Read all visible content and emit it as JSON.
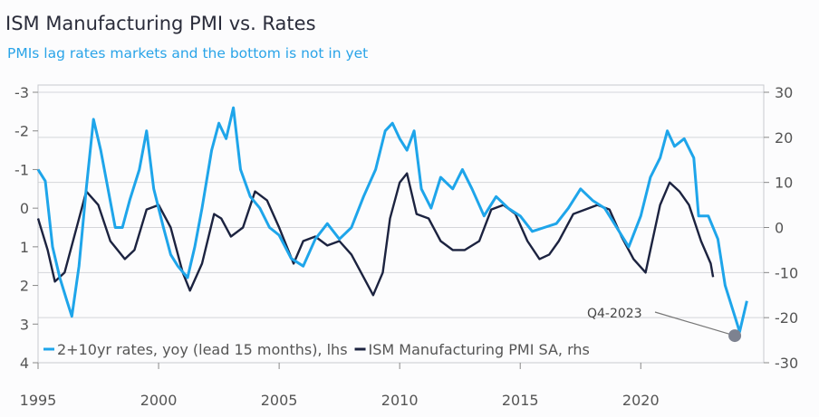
{
  "chart_data": {
    "type": "line",
    "title": "ISM Manufacturing PMI vs. Rates",
    "subtitle": "PMIs lag rates markets and the bottom is not in yet",
    "x_ticks": [
      1995,
      2000,
      2005,
      2010,
      2015,
      2020
    ],
    "xlim": [
      1995,
      2025.1
    ],
    "left_axis": {
      "ticks": [
        -3,
        -2,
        -1,
        0,
        1,
        2,
        3,
        4
      ],
      "ylim": [
        -3,
        4
      ],
      "inverted": true
    },
    "right_axis": {
      "ticks": [
        30,
        20,
        10,
        0,
        -10,
        -20,
        -30
      ],
      "ylim": [
        -30,
        30
      ]
    },
    "grid": true,
    "legend_placement": "bottom-left",
    "annotation": {
      "text": "Q4-2023",
      "x": 2023.9,
      "y": 3.3
    },
    "series": [
      {
        "name": "2+10yr rates, yoy (lead 15 months), lhs",
        "axis": "left",
        "color": "#1ea5ea",
        "x": [
          1995.0,
          1995.3,
          1995.6,
          1995.9,
          1996.2,
          1996.4,
          1996.7,
          1997.0,
          1997.3,
          1997.6,
          1997.9,
          1998.2,
          1998.5,
          1998.8,
          1999.2,
          1999.5,
          1999.8,
          2000.2,
          2000.5,
          2000.8,
          2001.2,
          2001.5,
          2001.8,
          2002.2,
          2002.5,
          2002.8,
          2003.1,
          2003.4,
          2003.8,
          2004.2,
          2004.6,
          2005.0,
          2005.5,
          2006.0,
          2006.5,
          2007.0,
          2007.5,
          2008.0,
          2008.5,
          2009.0,
          2009.4,
          2009.7,
          2010.0,
          2010.3,
          2010.6,
          2010.9,
          2011.3,
          2011.7,
          2012.2,
          2012.6,
          2013.0,
          2013.5,
          2014.0,
          2014.5,
          2015.0,
          2015.5,
          2016.0,
          2016.5,
          2017.0,
          2017.5,
          2018.0,
          2018.5,
          2019.0,
          2019.5,
          2020.0,
          2020.4,
          2020.8,
          2021.1,
          2021.4,
          2021.8,
          2022.2,
          2022.4,
          2022.8,
          2023.2,
          2023.5,
          2023.9,
          2024.1,
          2024.4
        ],
        "values": [
          -1.0,
          -0.7,
          1.0,
          1.8,
          2.4,
          2.8,
          1.5,
          -0.5,
          -2.3,
          -1.5,
          -0.5,
          0.5,
          0.5,
          -0.2,
          -1.0,
          -2.0,
          -0.5,
          0.5,
          1.2,
          1.5,
          1.8,
          1.0,
          0.0,
          -1.5,
          -2.2,
          -1.8,
          -2.6,
          -1.0,
          -0.3,
          0.0,
          0.5,
          0.7,
          1.3,
          1.5,
          0.8,
          0.4,
          0.8,
          0.5,
          -0.3,
          -1.0,
          -2.0,
          -2.2,
          -1.8,
          -1.5,
          -2.0,
          -0.5,
          0.0,
          -0.8,
          -0.5,
          -1.0,
          -0.5,
          0.2,
          -0.3,
          0.0,
          0.2,
          0.6,
          0.5,
          0.4,
          0.0,
          -0.5,
          -0.2,
          0.0,
          0.5,
          1.0,
          0.2,
          -0.8,
          -1.3,
          -2.0,
          -1.6,
          -1.8,
          -1.3,
          0.2,
          0.2,
          0.8,
          2.0,
          2.8,
          3.2,
          2.4
        ]
      },
      {
        "name": "ISM Manufacturing PMI SA, rhs",
        "axis": "right",
        "color": "#1c2340",
        "x": [
          1995.0,
          1995.4,
          1995.7,
          1996.1,
          1996.6,
          1997.0,
          1997.5,
          1998.0,
          1998.6,
          1999.0,
          1999.5,
          2000.0,
          2000.5,
          2001.0,
          2001.3,
          2001.8,
          2002.3,
          2002.6,
          2003.0,
          2003.5,
          2004.0,
          2004.5,
          2005.0,
          2005.6,
          2006.0,
          2006.5,
          2007.0,
          2007.5,
          2008.0,
          2008.6,
          2008.9,
          2009.3,
          2009.6,
          2010.0,
          2010.3,
          2010.7,
          2011.2,
          2011.7,
          2012.2,
          2012.7,
          2013.3,
          2013.8,
          2014.3,
          2014.8,
          2015.3,
          2015.8,
          2016.2,
          2016.6,
          2017.2,
          2017.7,
          2018.2,
          2018.7,
          2019.2,
          2019.7,
          2020.2,
          2020.4,
          2020.8,
          2021.2,
          2021.6,
          2022.0,
          2022.5,
          2022.9,
          2023.0
        ],
        "values": [
          2,
          -5,
          -12,
          -10,
          0,
          8,
          5,
          -3,
          -7,
          -5,
          4,
          5,
          0,
          -10,
          -14,
          -8,
          3,
          2,
          -2,
          0,
          8,
          6,
          0,
          -8,
          -3,
          -2,
          -4,
          -3,
          -6,
          -12,
          -15,
          -10,
          2,
          10,
          12,
          3,
          2,
          -3,
          -5,
          -5,
          -3,
          4,
          5,
          3,
          -3,
          -7,
          -6,
          -3,
          3,
          4,
          5,
          4,
          -2,
          -7,
          -10,
          -5,
          5,
          10,
          8,
          5,
          -3,
          -8,
          -11
        ]
      }
    ]
  }
}
